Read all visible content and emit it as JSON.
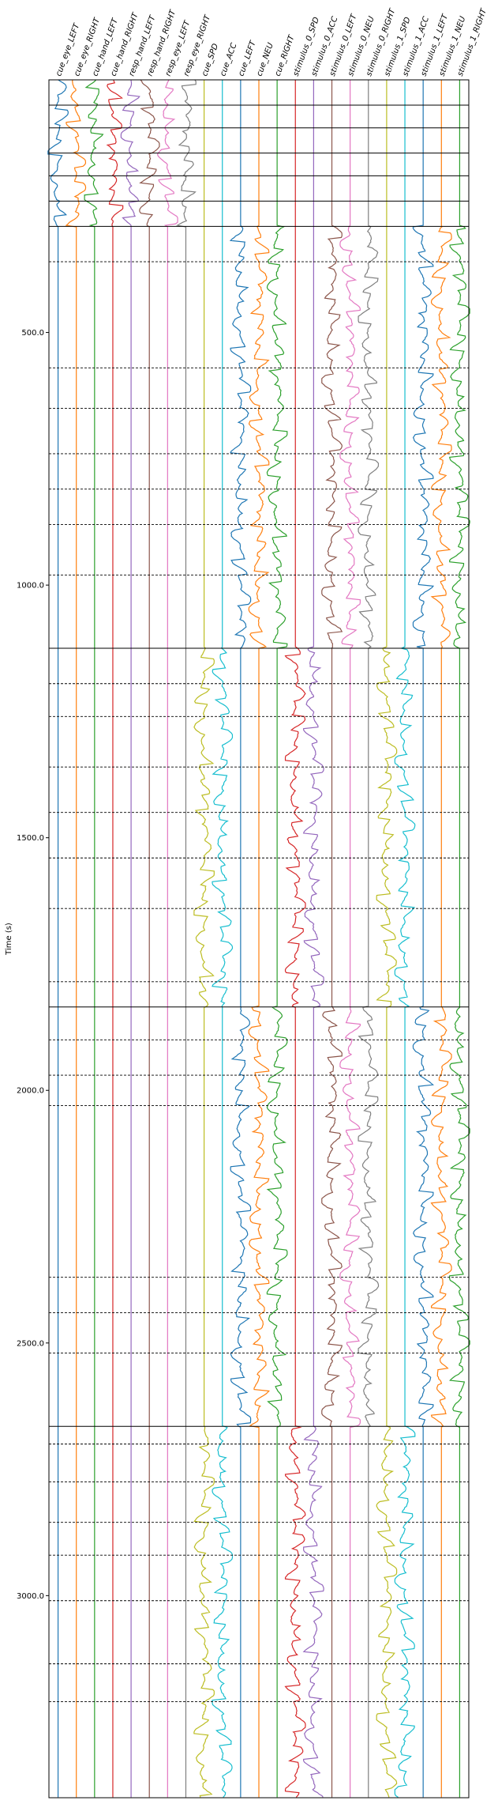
{
  "chart_data": {
    "type": "line",
    "ylabel": "Time (s)",
    "y_ticks": [
      "500.0",
      "1000.0",
      "1500.0",
      "2000.0",
      "2500.0",
      "3000.0"
    ],
    "y_tick_values": [
      500,
      1000,
      1500,
      2000,
      2500,
      3000
    ],
    "ylim": [
      0,
      3400
    ],
    "y_inverted": true,
    "series": [
      {
        "name": "cue_eye_LEFT",
        "color": "#1f77b4"
      },
      {
        "name": "cue_eye_RIGHT",
        "color": "#ff7f0e"
      },
      {
        "name": "cue_hand_LEFT",
        "color": "#2ca02c"
      },
      {
        "name": "cue_hand_RIGHT",
        "color": "#d62728"
      },
      {
        "name": "resp_hand_LEFT",
        "color": "#9467bd"
      },
      {
        "name": "resp_hand_RIGHT",
        "color": "#8c564b"
      },
      {
        "name": "resp_eye_LEFT",
        "color": "#e377c2"
      },
      {
        "name": "resp_eye_RIGHT",
        "color": "#7f7f7f"
      },
      {
        "name": "cue_SPD",
        "color": "#bcbd22"
      },
      {
        "name": "cue_ACC",
        "color": "#17becf"
      },
      {
        "name": "cue_LEFT",
        "color": "#1f77b4"
      },
      {
        "name": "cue_NEU",
        "color": "#ff7f0e"
      },
      {
        "name": "cue_RIGHT",
        "color": "#2ca02c"
      },
      {
        "name": "stimulus_0_SPD",
        "color": "#d62728"
      },
      {
        "name": "stimulus_0_ACC",
        "color": "#9467bd"
      },
      {
        "name": "stimulus_0_LEFT",
        "color": "#8c564b"
      },
      {
        "name": "stimulus_0_NEU",
        "color": "#e377c2"
      },
      {
        "name": "stimulus_0_RIGHT",
        "color": "#7f7f7f"
      },
      {
        "name": "stimulus_1_SPD",
        "color": "#bcbd22"
      },
      {
        "name": "stimulus_1_ACC",
        "color": "#17becf"
      },
      {
        "name": "stimulus_1_LEFT",
        "color": "#1f77b4"
      },
      {
        "name": "stimulus_1_NEU",
        "color": "#ff7f0e"
      },
      {
        "name": "stimulus_1_RIGHT",
        "color": "#2ca02c"
      }
    ],
    "session_boundaries": [
      0,
      50,
      95,
      145,
      190,
      240,
      290,
      1125,
      1835,
      2665
    ],
    "run_boundaries": [
      360,
      570,
      650,
      740,
      810,
      880,
      980,
      1195,
      1260,
      1360,
      1450,
      1540,
      1640,
      1785,
      1900,
      1970,
      2030,
      2370,
      2440,
      2520,
      2700,
      2775,
      2855,
      2920,
      3010,
      3135,
      3210
    ],
    "segments": [
      {
        "y_range": [
          0,
          290
        ],
        "active": [
          "cue_eye_LEFT",
          "cue_eye_RIGHT",
          "cue_hand_LEFT",
          "cue_hand_RIGHT",
          "resp_hand_LEFT",
          "resp_hand_RIGHT",
          "resp_eye_LEFT",
          "resp_eye_RIGHT"
        ]
      },
      {
        "y_range": [
          290,
          1125
        ],
        "active": [
          "cue_LEFT",
          "cue_NEU",
          "cue_RIGHT",
          "stimulus_0_LEFT",
          "stimulus_0_NEU",
          "stimulus_0_RIGHT",
          "stimulus_1_LEFT",
          "stimulus_1_NEU",
          "stimulus_1_RIGHT"
        ]
      },
      {
        "y_range": [
          1125,
          1835
        ],
        "active": [
          "cue_SPD",
          "cue_ACC",
          "stimulus_0_SPD",
          "stimulus_0_ACC",
          "stimulus_1_SPD",
          "stimulus_1_ACC"
        ]
      },
      {
        "y_range": [
          1835,
          2665
        ],
        "active": [
          "cue_LEFT",
          "cue_NEU",
          "cue_RIGHT",
          "stimulus_0_LEFT",
          "stimulus_0_NEU",
          "stimulus_0_RIGHT",
          "stimulus_1_LEFT",
          "stimulus_1_NEU",
          "stimulus_1_RIGHT"
        ]
      },
      {
        "y_range": [
          2665,
          3400
        ],
        "active": [
          "cue_SPD",
          "cue_ACC",
          "stimulus_0_SPD",
          "stimulus_0_ACC",
          "stimulus_1_SPD",
          "stimulus_1_ACC"
        ]
      }
    ]
  }
}
